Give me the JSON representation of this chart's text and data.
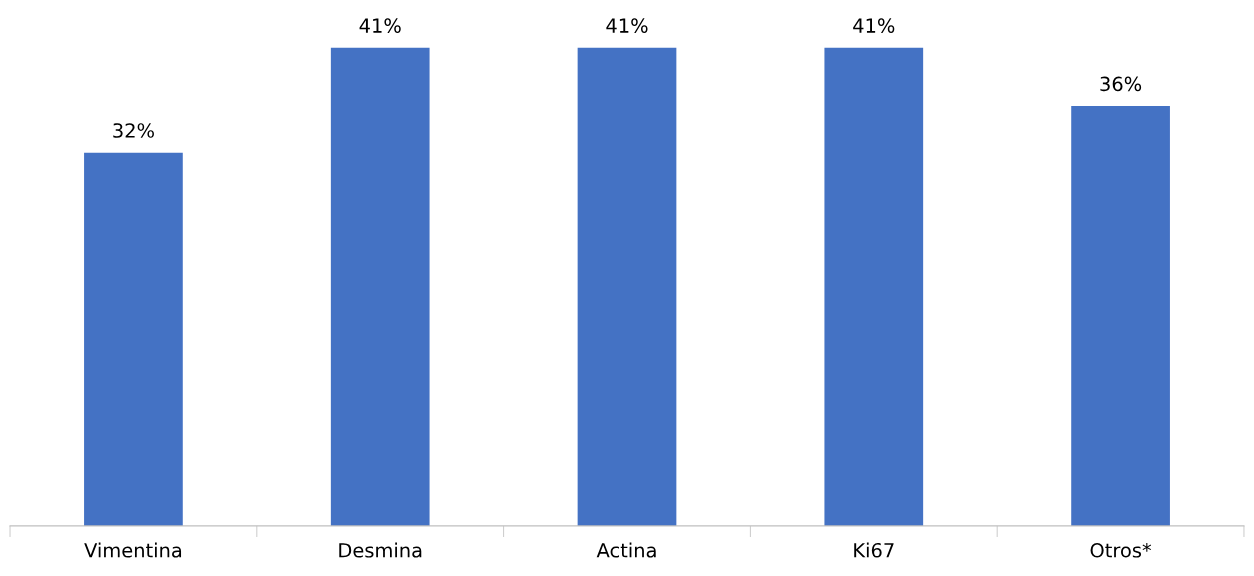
{
  "chart_data": {
    "type": "bar",
    "categories": [
      "Vimentina",
      "Desmina",
      "Actina",
      "Ki67",
      "Otros*"
    ],
    "values": [
      32,
      41,
      41,
      41,
      36
    ],
    "value_labels": [
      "32%",
      "41%",
      "41%",
      "41%",
      "36%"
    ],
    "color": "#4472c4"
  }
}
